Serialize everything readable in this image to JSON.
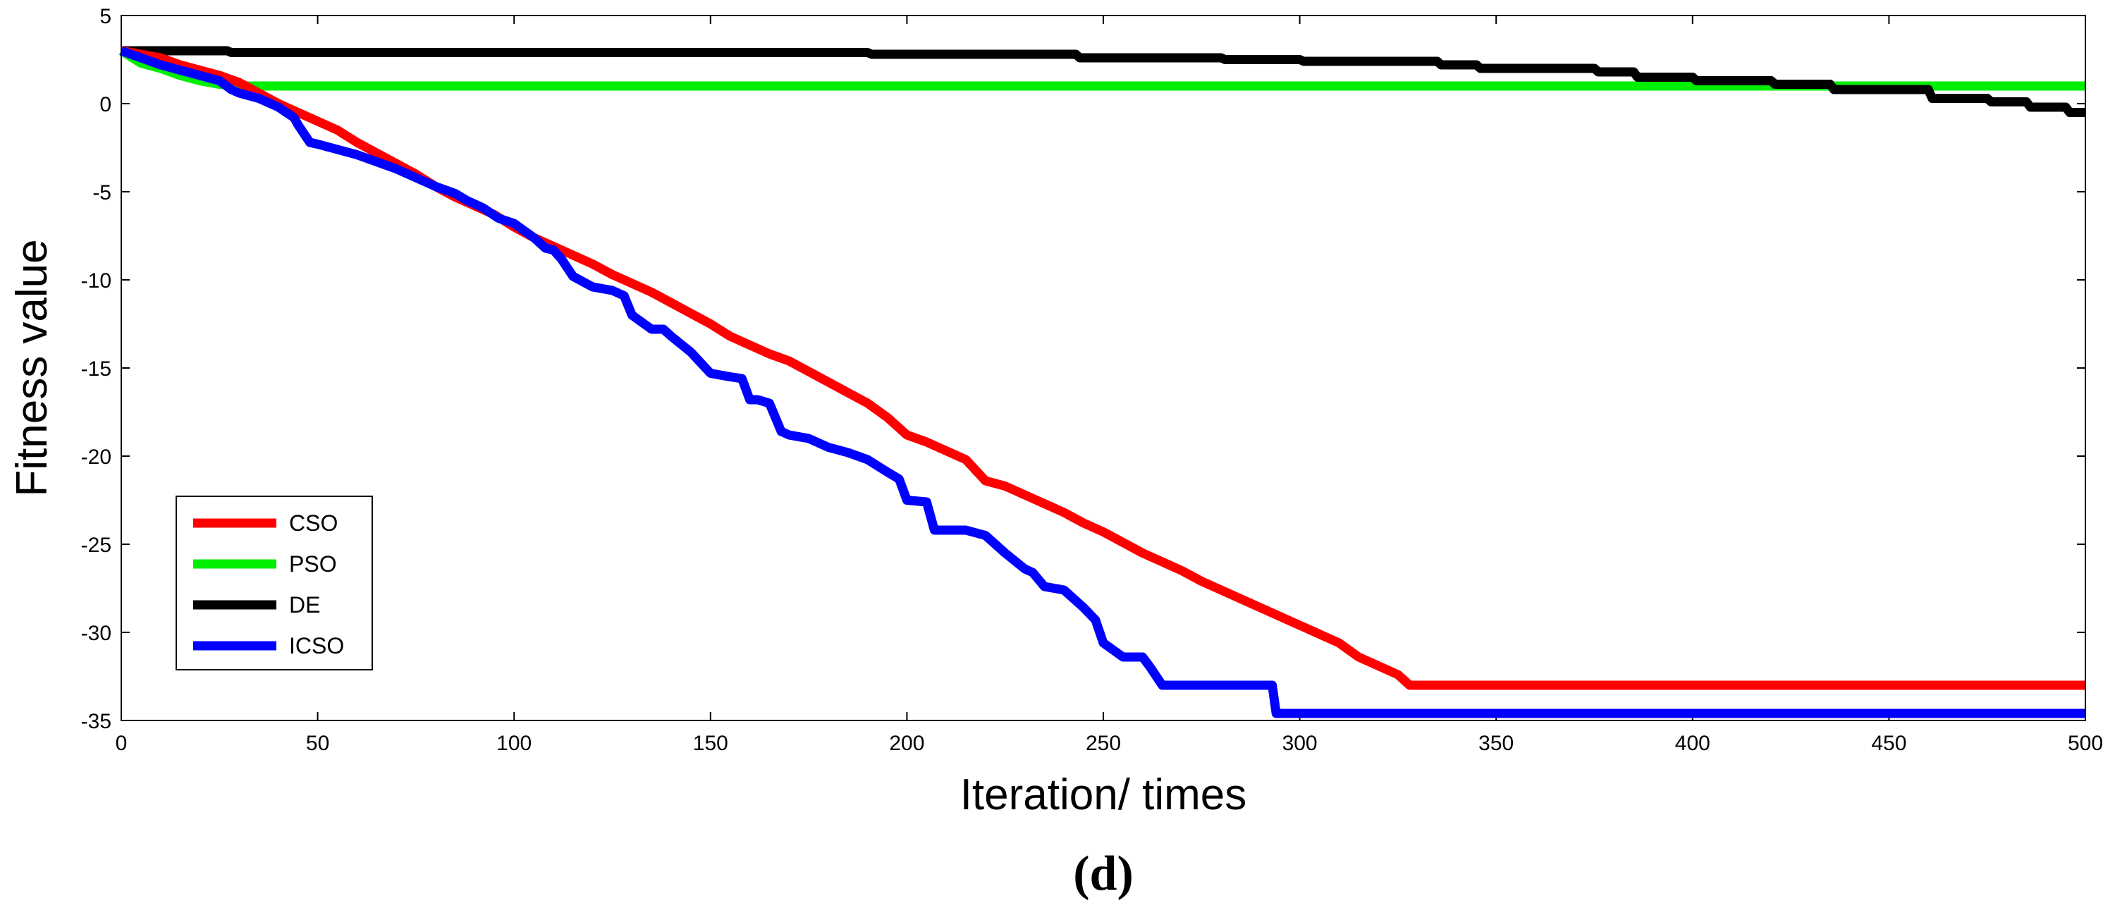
{
  "chart_data": {
    "type": "line",
    "title": "",
    "xlabel": "Iteration/ times",
    "ylabel": "Fitness value",
    "panel_label": "(d)",
    "xlim": [
      0,
      500
    ],
    "ylim": [
      -35,
      5
    ],
    "xticks": [
      0,
      50,
      100,
      150,
      200,
      250,
      300,
      350,
      400,
      450,
      500
    ],
    "yticks": [
      5,
      0,
      -5,
      -10,
      -15,
      -20,
      -25,
      -30,
      -35
    ],
    "grid": false,
    "legend_position": "lower-left",
    "series": [
      {
        "name": "CSO",
        "color": "#ff0000",
        "x": [
          0,
          5,
          10,
          15,
          20,
          25,
          30,
          35,
          40,
          45,
          50,
          55,
          60,
          65,
          70,
          75,
          80,
          85,
          90,
          95,
          100,
          105,
          110,
          115,
          120,
          125,
          130,
          135,
          140,
          145,
          150,
          155,
          160,
          165,
          170,
          175,
          180,
          185,
          190,
          195,
          200,
          205,
          210,
          215,
          220,
          225,
          230,
          235,
          240,
          245,
          250,
          255,
          260,
          265,
          270,
          275,
          280,
          285,
          290,
          295,
          300,
          305,
          310,
          315,
          320,
          325,
          328,
          335,
          400,
          500
        ],
        "y": [
          3,
          2.8,
          2.6,
          2.2,
          1.9,
          1.6,
          1.2,
          0.6,
          0,
          -0.5,
          -1,
          -1.5,
          -2.2,
          -2.8,
          -3.4,
          -4,
          -4.7,
          -5.3,
          -5.8,
          -6.3,
          -7,
          -7.6,
          -8.1,
          -8.6,
          -9.1,
          -9.7,
          -10.2,
          -10.7,
          -11.3,
          -11.9,
          -12.5,
          -13.2,
          -13.7,
          -14.2,
          -14.6,
          -15.2,
          -15.8,
          -16.4,
          -17,
          -17.8,
          -18.8,
          -19.2,
          -19.7,
          -20.2,
          -21.4,
          -21.7,
          -22.2,
          -22.7,
          -23.2,
          -23.8,
          -24.3,
          -24.9,
          -25.5,
          -26,
          -26.5,
          -27.1,
          -27.6,
          -28.1,
          -28.6,
          -29.1,
          -29.6,
          -30.1,
          -30.6,
          -31.4,
          -31.9,
          -32.4,
          -33,
          -33,
          -33,
          -33
        ]
      },
      {
        "name": "PSO",
        "color": "#00ee00",
        "x": [
          0,
          5,
          10,
          15,
          20,
          25,
          30,
          500
        ],
        "y": [
          3,
          2.3,
          2,
          1.6,
          1.3,
          1.1,
          1,
          1
        ]
      },
      {
        "name": "DE",
        "color": "#000000",
        "x": [
          0,
          27,
          28,
          190,
          191,
          243,
          244,
          280,
          281,
          300,
          301,
          335,
          336,
          345,
          346,
          375,
          376,
          385,
          386,
          400,
          401,
          420,
          421,
          435,
          436,
          460,
          461,
          475,
          476,
          485,
          486,
          495,
          496,
          500
        ],
        "y": [
          3,
          3,
          2.9,
          2.9,
          2.8,
          2.8,
          2.6,
          2.6,
          2.5,
          2.5,
          2.4,
          2.4,
          2.2,
          2.2,
          2,
          2,
          1.8,
          1.8,
          1.5,
          1.5,
          1.3,
          1.3,
          1.1,
          1.1,
          0.8,
          0.8,
          0.3,
          0.3,
          0.1,
          0.1,
          -0.2,
          -0.2,
          -0.5,
          -0.5
        ]
      },
      {
        "name": "ICSO",
        "color": "#0000ff",
        "x": [
          0,
          5,
          10,
          15,
          20,
          25,
          28,
          30,
          35,
          40,
          44,
          45,
          48,
          50,
          55,
          60,
          65,
          70,
          75,
          80,
          85,
          88,
          92,
          96,
          100,
          105,
          108,
          110,
          112,
          115,
          120,
          125,
          128,
          130,
          135,
          138,
          140,
          145,
          150,
          155,
          158,
          160,
          162,
          165,
          168,
          170,
          175,
          180,
          185,
          190,
          195,
          198,
          200,
          205,
          207,
          210,
          215,
          220,
          222,
          225,
          230,
          232,
          235,
          240,
          245,
          248,
          250,
          255,
          260,
          262,
          265,
          268,
          270,
          275,
          280,
          285,
          290,
          293,
          294,
          300,
          400,
          500
        ],
        "y": [
          3,
          2.6,
          2.2,
          1.9,
          1.6,
          1.3,
          0.8,
          0.6,
          0.3,
          -0.2,
          -0.8,
          -1.2,
          -2.2,
          -2.3,
          -2.6,
          -2.9,
          -3.3,
          -3.7,
          -4.2,
          -4.7,
          -5.1,
          -5.5,
          -5.9,
          -6.5,
          -6.8,
          -7.6,
          -8.2,
          -8.3,
          -8.8,
          -9.8,
          -10.4,
          -10.6,
          -10.9,
          -12,
          -12.8,
          -12.8,
          -13.2,
          -14.1,
          -15.3,
          -15.5,
          -15.6,
          -16.8,
          -16.8,
          -17,
          -18.6,
          -18.8,
          -19,
          -19.5,
          -19.8,
          -20.2,
          -20.9,
          -21.3,
          -22.5,
          -22.6,
          -24.2,
          -24.2,
          -24.2,
          -24.5,
          -24.9,
          -25.5,
          -26.4,
          -26.6,
          -27.4,
          -27.6,
          -28.6,
          -29.3,
          -30.6,
          -31.4,
          -31.4,
          -32,
          -33,
          -33,
          -33,
          -33,
          -33,
          -33,
          -33,
          -33,
          -34.6,
          -34.6,
          -34.6,
          -34.6
        ]
      }
    ]
  }
}
